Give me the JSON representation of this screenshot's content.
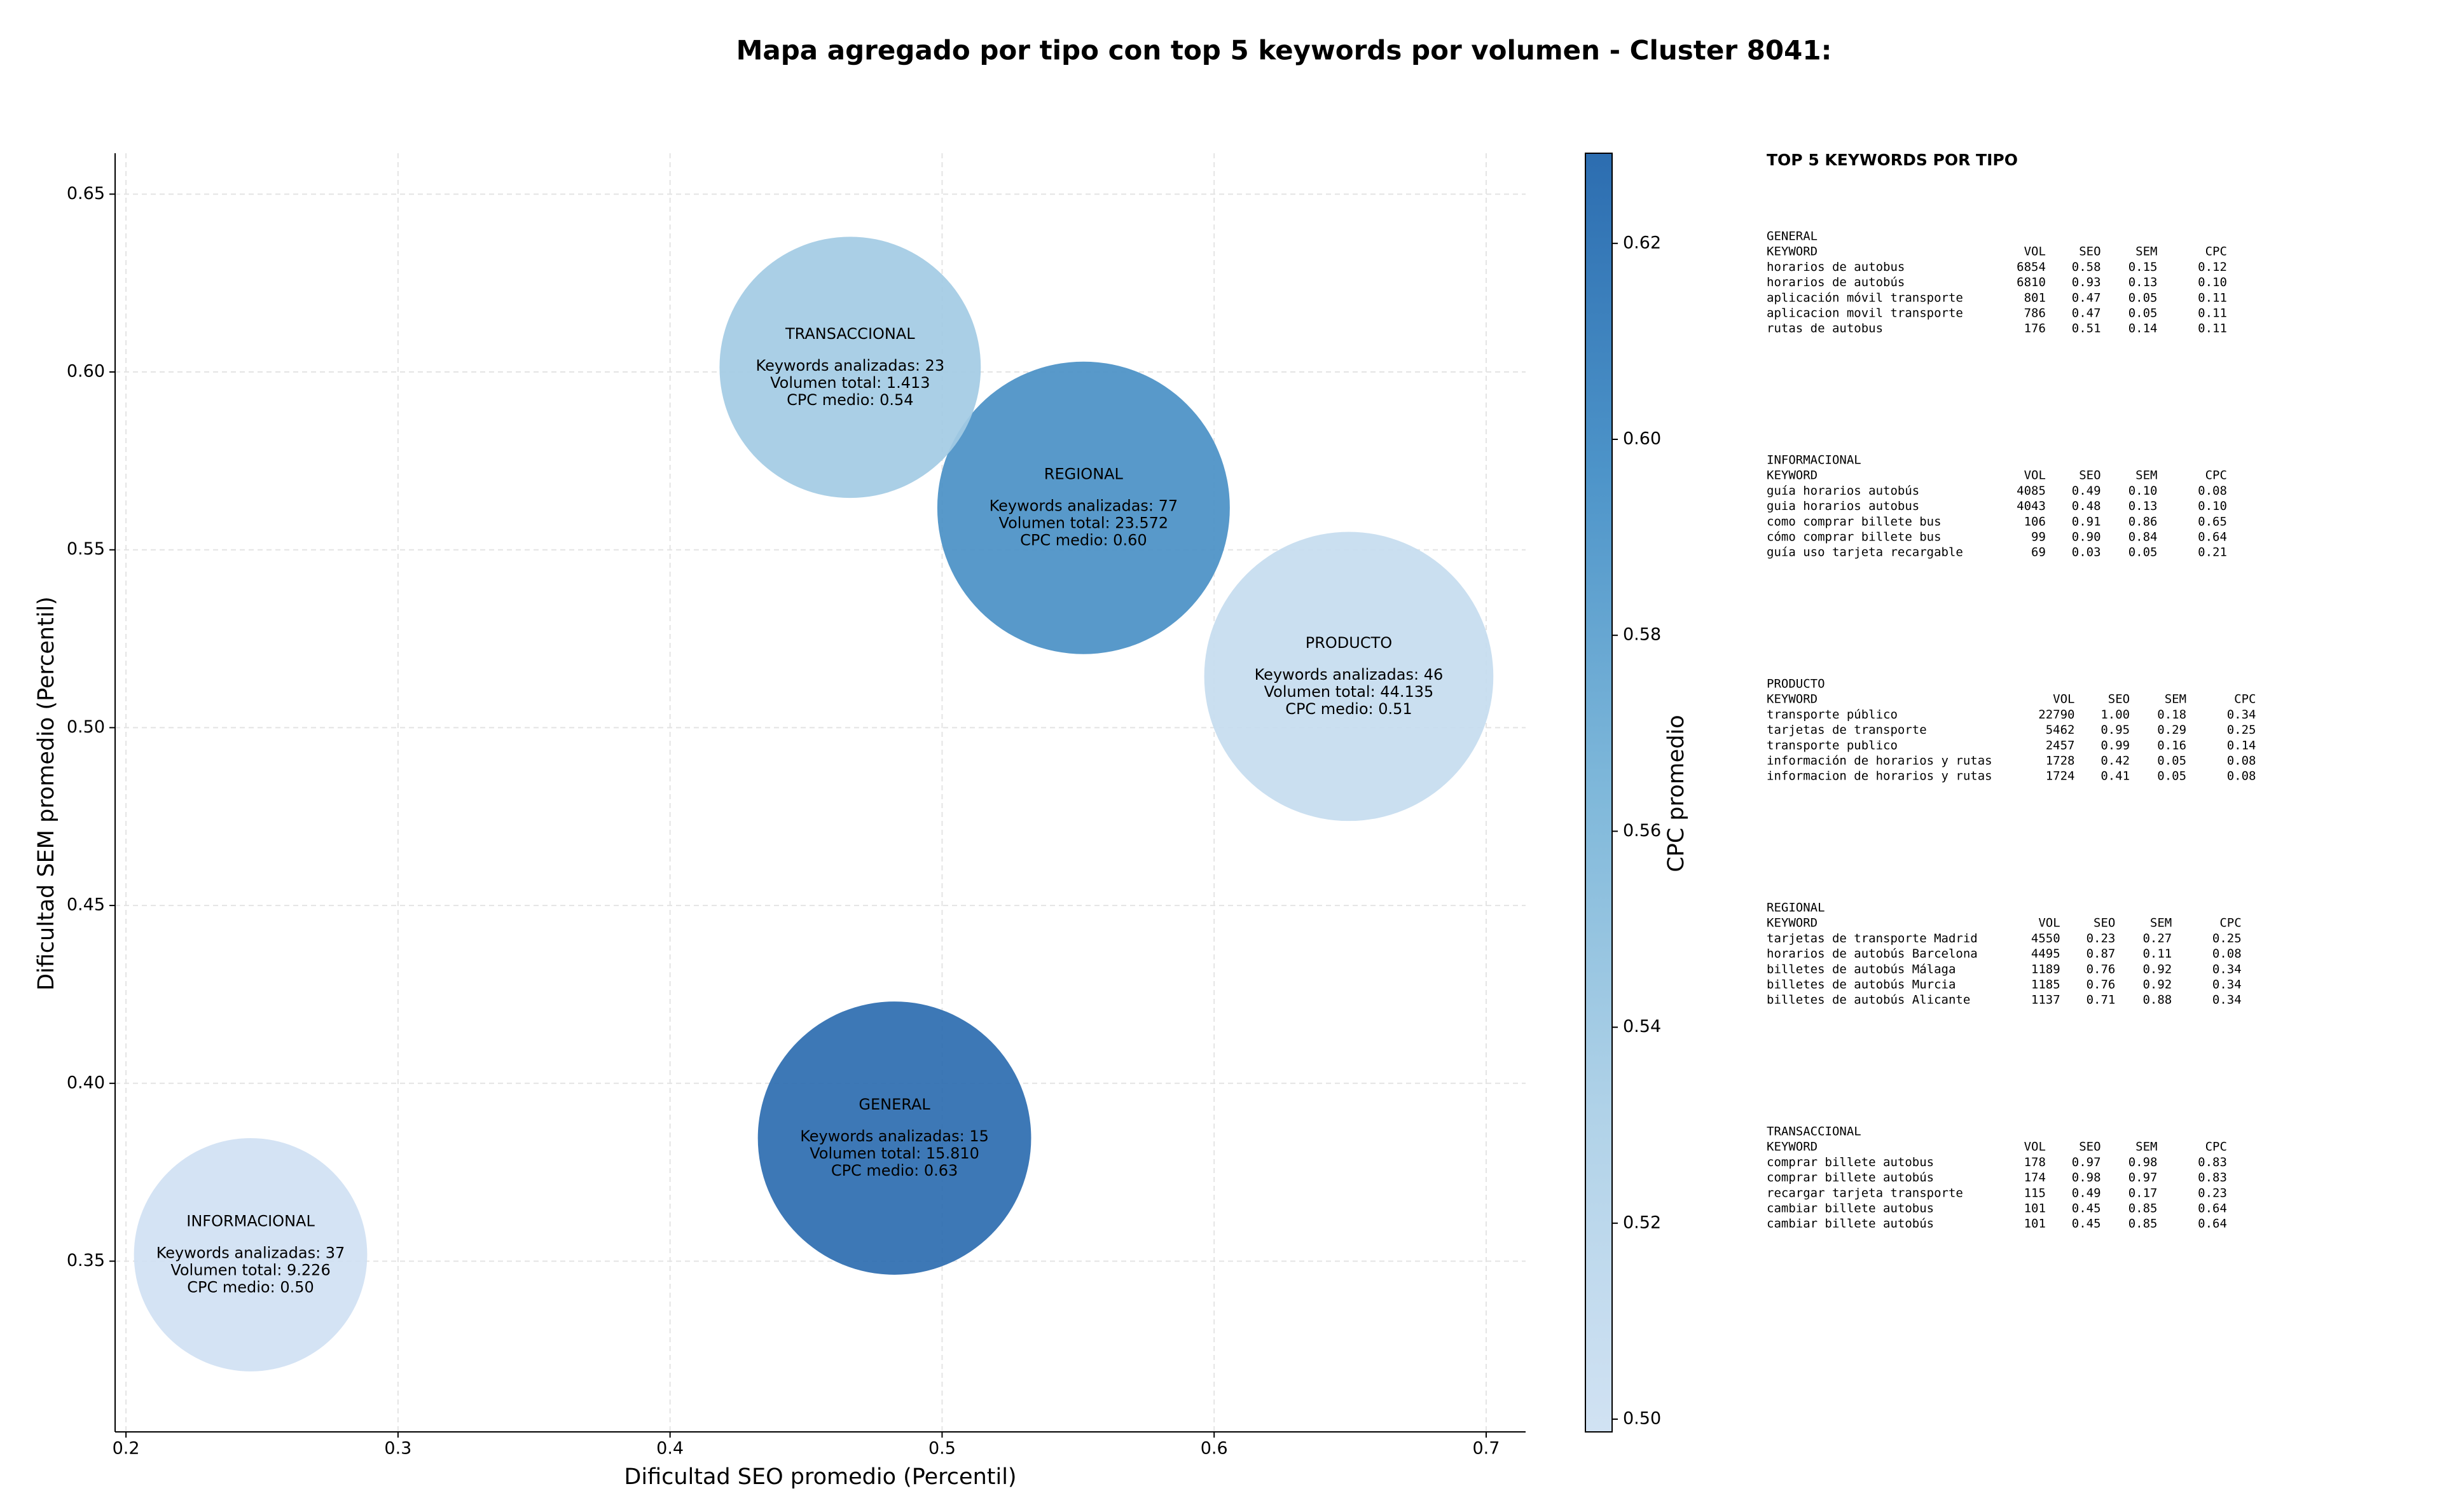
{
  "chart_data": {
    "type": "bubble",
    "title": "Mapa agregado por tipo con top 5 keywords por volumen - Cluster 8041:",
    "x_label": "Dificultad SEO promedio (Percentil)",
    "y_label": "Dificultad SEM promedio (Percentil)",
    "colorbar_label": "CPC promedio",
    "categories": [
      "GENERAL",
      "INFORMACIONAL",
      "PRODUCTO",
      "REGIONAL",
      "TRANSACCIONAL"
    ],
    "x": [
      0.4825,
      0.2458,
      0.6495,
      0.552,
      0.4662
    ],
    "values": [
      0.3846,
      0.3518,
      0.5144,
      0.5618,
      0.6013
    ],
    "sizes": [
      7550,
      5500,
      8450,
      8650,
      6900
    ],
    "cpc": [
      0.63,
      0.5,
      0.51,
      0.6,
      0.54
    ],
    "annotations": [
      [
        "Keywords analizadas: 15",
        "Volumen total: 15.810",
        "CPC medio: 0.63"
      ],
      [
        "Keywords analizadas: 37",
        "Volumen total: 9.226",
        "CPC medio: 0.50"
      ],
      [
        "Keywords analizadas: 46",
        "Volumen total: 44.135",
        "CPC medio: 0.51"
      ],
      [
        "Keywords analizadas: 77",
        "Volumen total: 23.572",
        "CPC medio: 0.60"
      ],
      [
        "Keywords analizadas: 23",
        "Volumen total: 1.413",
        "CPC medio: 0.54"
      ]
    ],
    "xlim": [
      0.196,
      0.7145
    ],
    "xticks": [
      0.2,
      0.3,
      0.4,
      0.5,
      0.6,
      0.7
    ],
    "ylim": [
      0.302,
      0.6615
    ],
    "yticks": [
      0.35,
      {
        "value": 0.4,
        "label": "0.40"
      },
      0.45,
      {
        "value": 0.5,
        "label": "0.50"
      },
      0.55,
      {
        "value": 0.6,
        "label": "0.60"
      },
      0.65
    ],
    "clim": [
      0.4987,
      0.6292
    ],
    "cticks": [
      {
        "value": 0.5,
        "label": "0.50"
      },
      {
        "value": 0.52,
        "label": "0.52"
      },
      {
        "value": 0.54,
        "label": "0.54"
      },
      {
        "value": 0.56,
        "label": "0.56"
      },
      {
        "value": 0.58,
        "label": "0.58"
      },
      {
        "value": 0.6,
        "label": "0.60"
      },
      {
        "value": 0.62,
        "label": "0.62"
      }
    ],
    "colormap": [
      "#d1e2f3",
      "#b0d2e8",
      "#7fb8da",
      "#4d94c9",
      "#2c6db0"
    ],
    "grid": true
  },
  "keyword_table": {
    "title": "TOP 5 KEYWORDS POR TIPO",
    "columns": [
      "KEYWORD",
      "VOL",
      "SEO",
      "SEM",
      "CPC"
    ],
    "groups": [
      {
        "name": "GENERAL",
        "rows": [
          [
            "horarios de autobus",
            "6854",
            "0.58",
            "0.15",
            "0.12"
          ],
          [
            "horarios de autobús",
            "6810",
            "0.93",
            "0.13",
            "0.10"
          ],
          [
            "aplicación móvil transporte",
            "801",
            "0.47",
            "0.05",
            "0.11"
          ],
          [
            "aplicacion movil transporte",
            "786",
            "0.47",
            "0.05",
            "0.11"
          ],
          [
            "rutas de autobus",
            "176",
            "0.51",
            "0.14",
            "0.11"
          ]
        ]
      },
      {
        "name": "INFORMACIONAL",
        "rows": [
          [
            "guía horarios autobús",
            "4085",
            "0.49",
            "0.10",
            "0.08"
          ],
          [
            "guia horarios autobus",
            "4043",
            "0.48",
            "0.13",
            "0.10"
          ],
          [
            "como comprar billete bus",
            "106",
            "0.91",
            "0.86",
            "0.65"
          ],
          [
            "cómo comprar billete bus",
            "99",
            "0.90",
            "0.84",
            "0.64"
          ],
          [
            "guía uso tarjeta recargable",
            "69",
            "0.03",
            "0.05",
            "0.21"
          ]
        ]
      },
      {
        "name": "PRODUCTO",
        "rows": [
          [
            "transporte público",
            "22790",
            "1.00",
            "0.18",
            "0.34"
          ],
          [
            "tarjetas de transporte",
            "5462",
            "0.95",
            "0.29",
            "0.25"
          ],
          [
            "transporte publico",
            "2457",
            "0.99",
            "0.16",
            "0.14"
          ],
          [
            "información de horarios y rutas",
            "1728",
            "0.42",
            "0.05",
            "0.08"
          ],
          [
            "informacion de horarios y rutas",
            "1724",
            "0.41",
            "0.05",
            "0.08"
          ]
        ]
      },
      {
        "name": "REGIONAL",
        "rows": [
          [
            "tarjetas de transporte Madrid",
            "4550",
            "0.23",
            "0.27",
            "0.25"
          ],
          [
            "horarios de autobús Barcelona",
            "4495",
            "0.87",
            "0.11",
            "0.08"
          ],
          [
            "billetes de autobús Málaga",
            "1189",
            "0.76",
            "0.92",
            "0.34"
          ],
          [
            "billetes de autobús Murcia",
            "1185",
            "0.76",
            "0.92",
            "0.34"
          ],
          [
            "billetes de autobús Alicante",
            "1137",
            "0.71",
            "0.88",
            "0.34"
          ]
        ]
      },
      {
        "name": "TRANSACCIONAL",
        "rows": [
          [
            "comprar billete autobus",
            "178",
            "0.97",
            "0.98",
            "0.83"
          ],
          [
            "comprar billete autobús",
            "174",
            "0.98",
            "0.97",
            "0.83"
          ],
          [
            "recargar tarjeta transporte",
            "115",
            "0.49",
            "0.17",
            "0.23"
          ],
          [
            "cambiar billete autobus",
            "101",
            "0.45",
            "0.85",
            "0.64"
          ],
          [
            "cambiar billete autobús",
            "101",
            "0.45",
            "0.85",
            "0.64"
          ]
        ]
      }
    ]
  }
}
